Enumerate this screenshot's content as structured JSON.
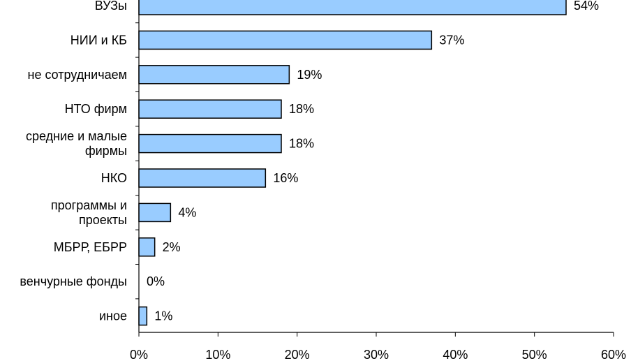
{
  "chart_data": {
    "type": "bar",
    "orientation": "horizontal",
    "categories": [
      [
        "ВУЗы"
      ],
      [
        "НИИ и КБ"
      ],
      [
        "не сотрудничаем"
      ],
      [
        "НТО фирм"
      ],
      [
        "средние и малые",
        "фирмы"
      ],
      [
        "НКО"
      ],
      [
        "программы и",
        "проекты"
      ],
      [
        "МБРР, ЕБРР"
      ],
      [
        "венчурные фонды"
      ],
      [
        "иное"
      ]
    ],
    "values": [
      54,
      37,
      19,
      18,
      18,
      16,
      4,
      2,
      0,
      1
    ],
    "value_labels": [
      "54%",
      "37%",
      "19%",
      "18%",
      "18%",
      "16%",
      "4%",
      "2%",
      "0%",
      "1%"
    ],
    "xlim": [
      0,
      60
    ],
    "ticks": [
      0,
      10,
      20,
      30,
      40,
      50,
      60
    ],
    "tick_labels": [
      "0%",
      "10%",
      "20%",
      "30%",
      "40%",
      "50%",
      "60%"
    ],
    "grid": false,
    "colors": {
      "bar_fill": "#99ccff",
      "bar_stroke": "#000000",
      "axis": "#000000"
    }
  }
}
